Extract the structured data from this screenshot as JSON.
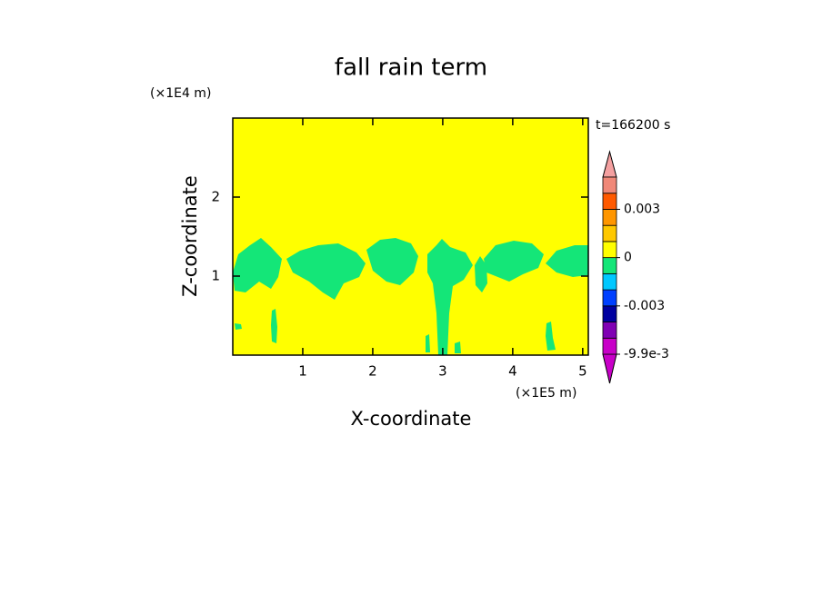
{
  "chart_data": {
    "type": "contour",
    "title": "fall rain term",
    "x_label": "X-coordinate",
    "y_label": "Z-coordinate",
    "x_unit": "(×1E5 m)",
    "y_unit": "(×1E4 m)",
    "time_label": "t=166200 s",
    "xlim": [
      0,
      5.08
    ],
    "ylim": [
      0,
      3
    ],
    "xticks": [
      1,
      2,
      3,
      4,
      5
    ],
    "yticks": [
      1,
      2
    ],
    "background_color": "#ffff00",
    "region_color": "#14e678",
    "colorbar": {
      "levels": [
        -0.0099,
        -0.007,
        -0.004,
        -0.003,
        -0.002,
        -0.001,
        0,
        0.001,
        0.002,
        0.003,
        0.004,
        0.006
      ],
      "colors": [
        "#c800c8",
        "#8000b4",
        "#0000a0",
        "#0040ff",
        "#00c8ff",
        "#14e678",
        "#ffff00",
        "#ffc800",
        "#ff9600",
        "#ff5a00",
        "#f08878"
      ],
      "under_color": "#c800c8",
      "over_color": "#f4a0a0",
      "ticks": [
        0.003,
        0,
        -0.003,
        {
          "value": -0.0099,
          "label": "-9.9e-3"
        }
      ]
    }
  }
}
